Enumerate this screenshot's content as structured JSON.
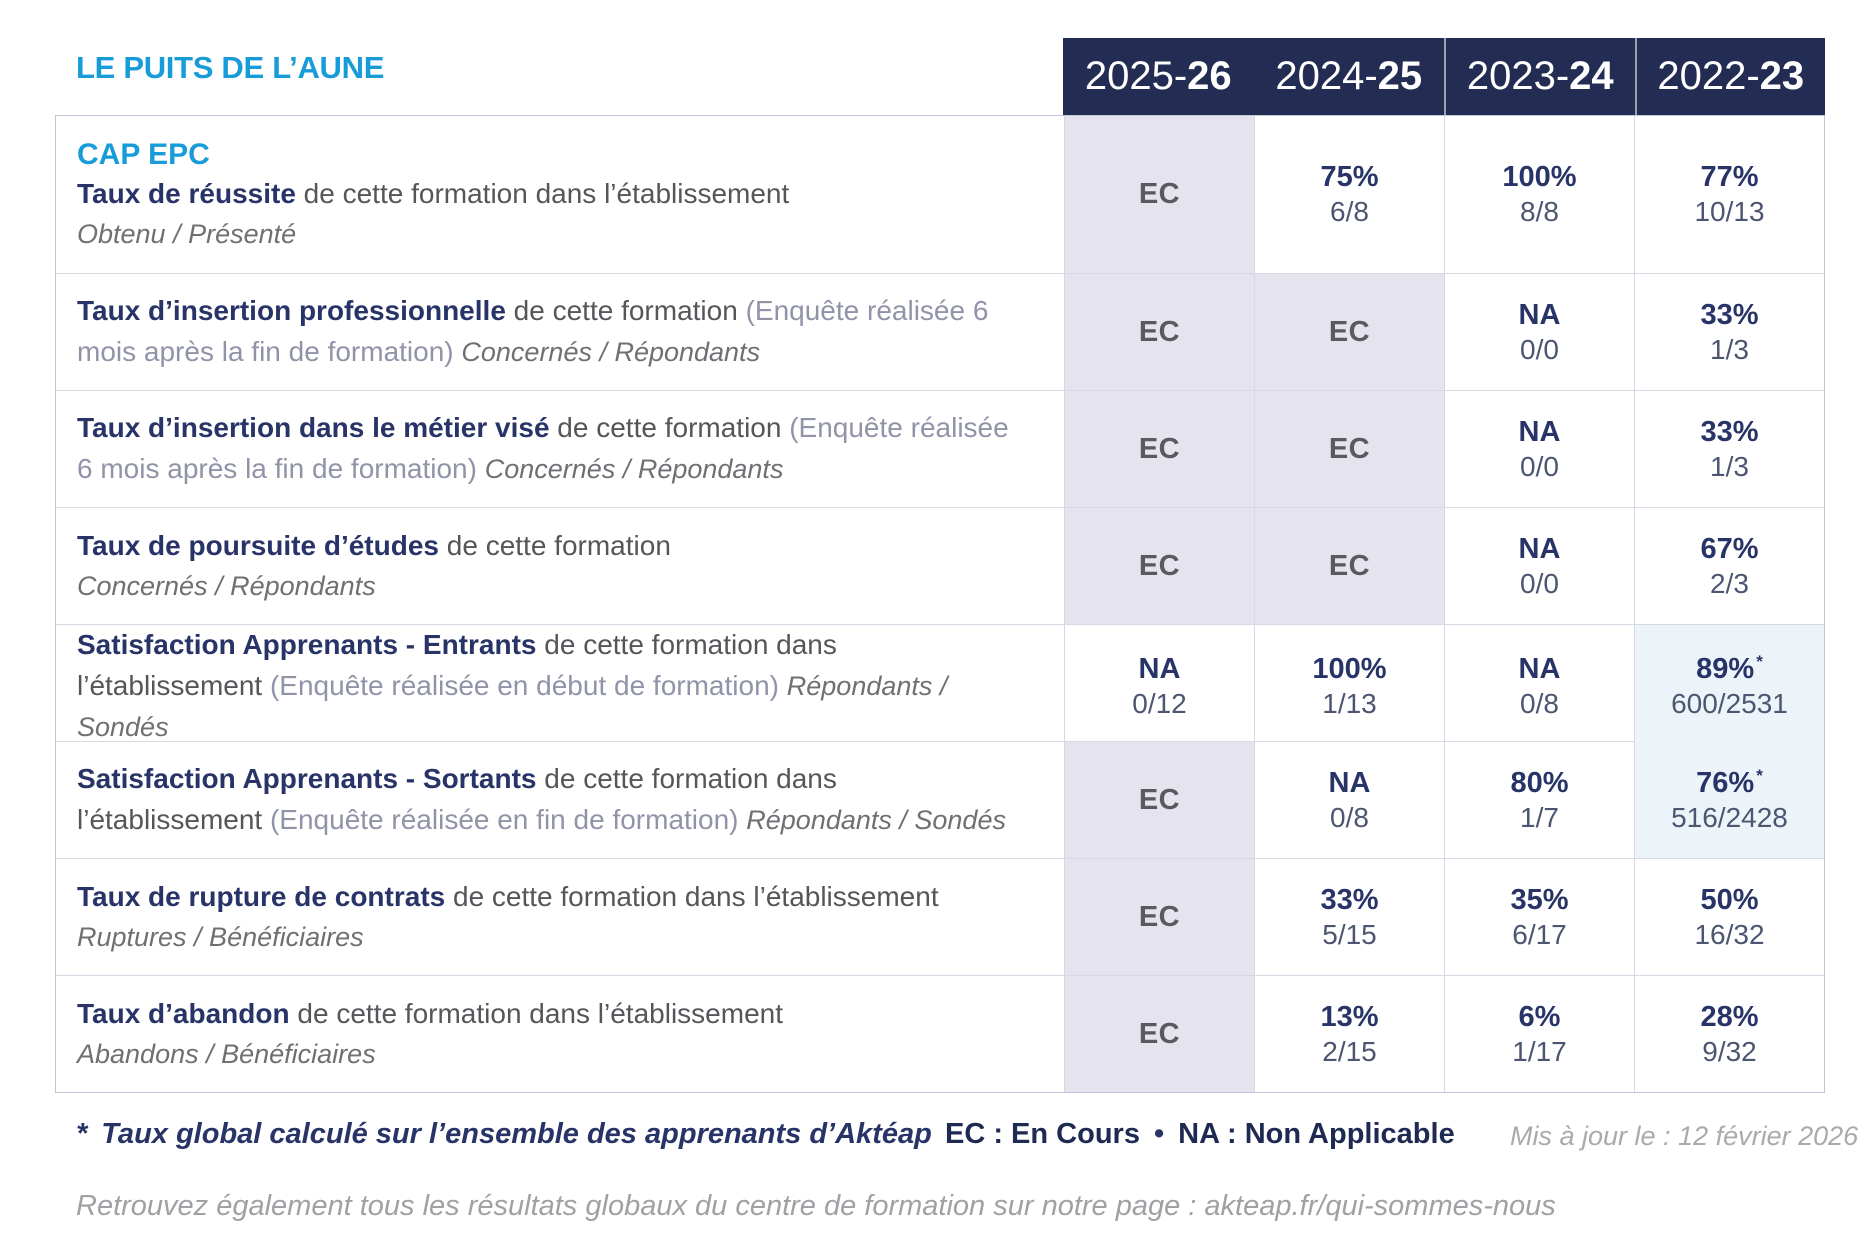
{
  "page": {
    "title": "LE PUITS DE L’AUNE"
  },
  "colors": {
    "accent_blue": "#189cd8",
    "navy_header": "#232d54",
    "navy_text": "#283467",
    "cell_muted": "#e4e3ee",
    "cell_highlight": "#ecf4fa"
  },
  "header": {
    "years": [
      {
        "prefix": "2025-",
        "suffix": "26"
      },
      {
        "prefix": "2024-",
        "suffix": "25"
      },
      {
        "prefix": "2023-",
        "suffix": "24"
      },
      {
        "prefix": "2022-",
        "suffix": "23"
      }
    ]
  },
  "table": {
    "rows": [
      {
        "heading": "CAP EPC",
        "title": "Taux de réussite",
        "desc": " de cette formation dans l’établissement",
        "note": "",
        "tail_italic": "",
        "block_italic": "Obtenu / Présenté",
        "cells": [
          {
            "text": "EC",
            "ec": true,
            "bg": "muted"
          },
          {
            "text": "75%",
            "frac": "6/8"
          },
          {
            "text": "100%",
            "frac": "8/8"
          },
          {
            "text": "77%",
            "frac": "10/13"
          }
        ]
      },
      {
        "heading": "",
        "title": "Taux d’insertion professionnelle",
        "desc": " de cette formation ",
        "note": "(Enquête réalisée 6 mois après la fin de formation) ",
        "tail_italic": "Concernés / Répondants",
        "block_italic": "",
        "cells": [
          {
            "text": "EC",
            "ec": true,
            "bg": "muted"
          },
          {
            "text": "EC",
            "ec": true,
            "bg": "muted"
          },
          {
            "text": "NA",
            "frac": "0/0"
          },
          {
            "text": "33%",
            "frac": "1/3"
          }
        ]
      },
      {
        "heading": "",
        "title": "Taux d’insertion dans le métier visé",
        "desc": " de cette formation ",
        "note": "(Enquête réalisée 6 mois après la fin de formation) ",
        "tail_italic": "Concernés / Répondants",
        "block_italic": "",
        "cells": [
          {
            "text": "EC",
            "ec": true,
            "bg": "muted"
          },
          {
            "text": "EC",
            "ec": true,
            "bg": "muted"
          },
          {
            "text": "NA",
            "frac": "0/0"
          },
          {
            "text": "33%",
            "frac": "1/3"
          }
        ]
      },
      {
        "heading": "",
        "title": "Taux de poursuite d’études",
        "desc": " de cette formation",
        "note": "",
        "tail_italic": "",
        "block_italic": "Concernés / Répondants",
        "cells": [
          {
            "text": "EC",
            "ec": true,
            "bg": "muted"
          },
          {
            "text": "EC",
            "ec": true,
            "bg": "muted"
          },
          {
            "text": "NA",
            "frac": "0/0"
          },
          {
            "text": "67%",
            "frac": "2/3"
          }
        ]
      },
      {
        "heading": "",
        "title": "Satisfaction Apprenants - Entrants",
        "desc": " de cette formation dans l’établissement ",
        "note": "(Enquête réalisée en début de formation) ",
        "tail_italic": "Répondants / Sondés",
        "block_italic": "",
        "cells": [
          {
            "text": "NA",
            "frac": "0/12"
          },
          {
            "text": "100%",
            "frac": "1/13"
          },
          {
            "text": "NA",
            "frac": "0/8"
          },
          {
            "text": "89%",
            "star": true,
            "frac": "600/2531",
            "bg": "highlight"
          }
        ]
      },
      {
        "heading": "",
        "title": "Satisfaction Apprenants - Sortants",
        "desc": " de cette formation dans l’établissement ",
        "note": "(Enquête réalisée en fin de formation) ",
        "tail_italic": "Répondants / Sondés",
        "block_italic": "",
        "cells": [
          {
            "text": "EC",
            "ec": true,
            "bg": "muted"
          },
          {
            "text": "NA",
            "frac": "0/8"
          },
          {
            "text": "80%",
            "frac": "1/7"
          },
          {
            "text": "76%",
            "star": true,
            "frac": "516/2428",
            "bg": "highlight"
          }
        ]
      },
      {
        "heading": "",
        "title": "Taux de rupture de contrats",
        "desc": " de cette formation dans l’établissement",
        "note": "",
        "tail_italic": "",
        "block_italic": "Ruptures / Bénéficiaires",
        "cells": [
          {
            "text": "EC",
            "ec": true,
            "bg": "muted"
          },
          {
            "text": "33%",
            "frac": "5/15"
          },
          {
            "text": "35%",
            "frac": "6/17"
          },
          {
            "text": "50%",
            "frac": "16/32"
          }
        ]
      },
      {
        "heading": "",
        "title": "Taux d’abandon",
        "desc": " de cette formation dans l’établissement",
        "note": "",
        "tail_italic": "",
        "block_italic": "Abandons / Bénéficiaires",
        "cells": [
          {
            "text": "EC",
            "ec": true,
            "bg": "muted"
          },
          {
            "text": "13%",
            "frac": "2/15"
          },
          {
            "text": "6%",
            "frac": "1/17"
          },
          {
            "text": "28%",
            "frac": "9/32"
          }
        ]
      }
    ]
  },
  "footer": {
    "star": "*",
    "note": "Taux global calculé sur l’ensemble des apprenants d’Aktéap",
    "legend_ec": "EC : En Cours",
    "bullet": "•",
    "legend_na": "NA : Non Applicable",
    "updated": "Mis à jour le : 12 février 2026",
    "bottom": "Retrouvez également tous les résultats globaux du centre de formation sur notre page : akteap.fr/qui-sommes-nous"
  }
}
